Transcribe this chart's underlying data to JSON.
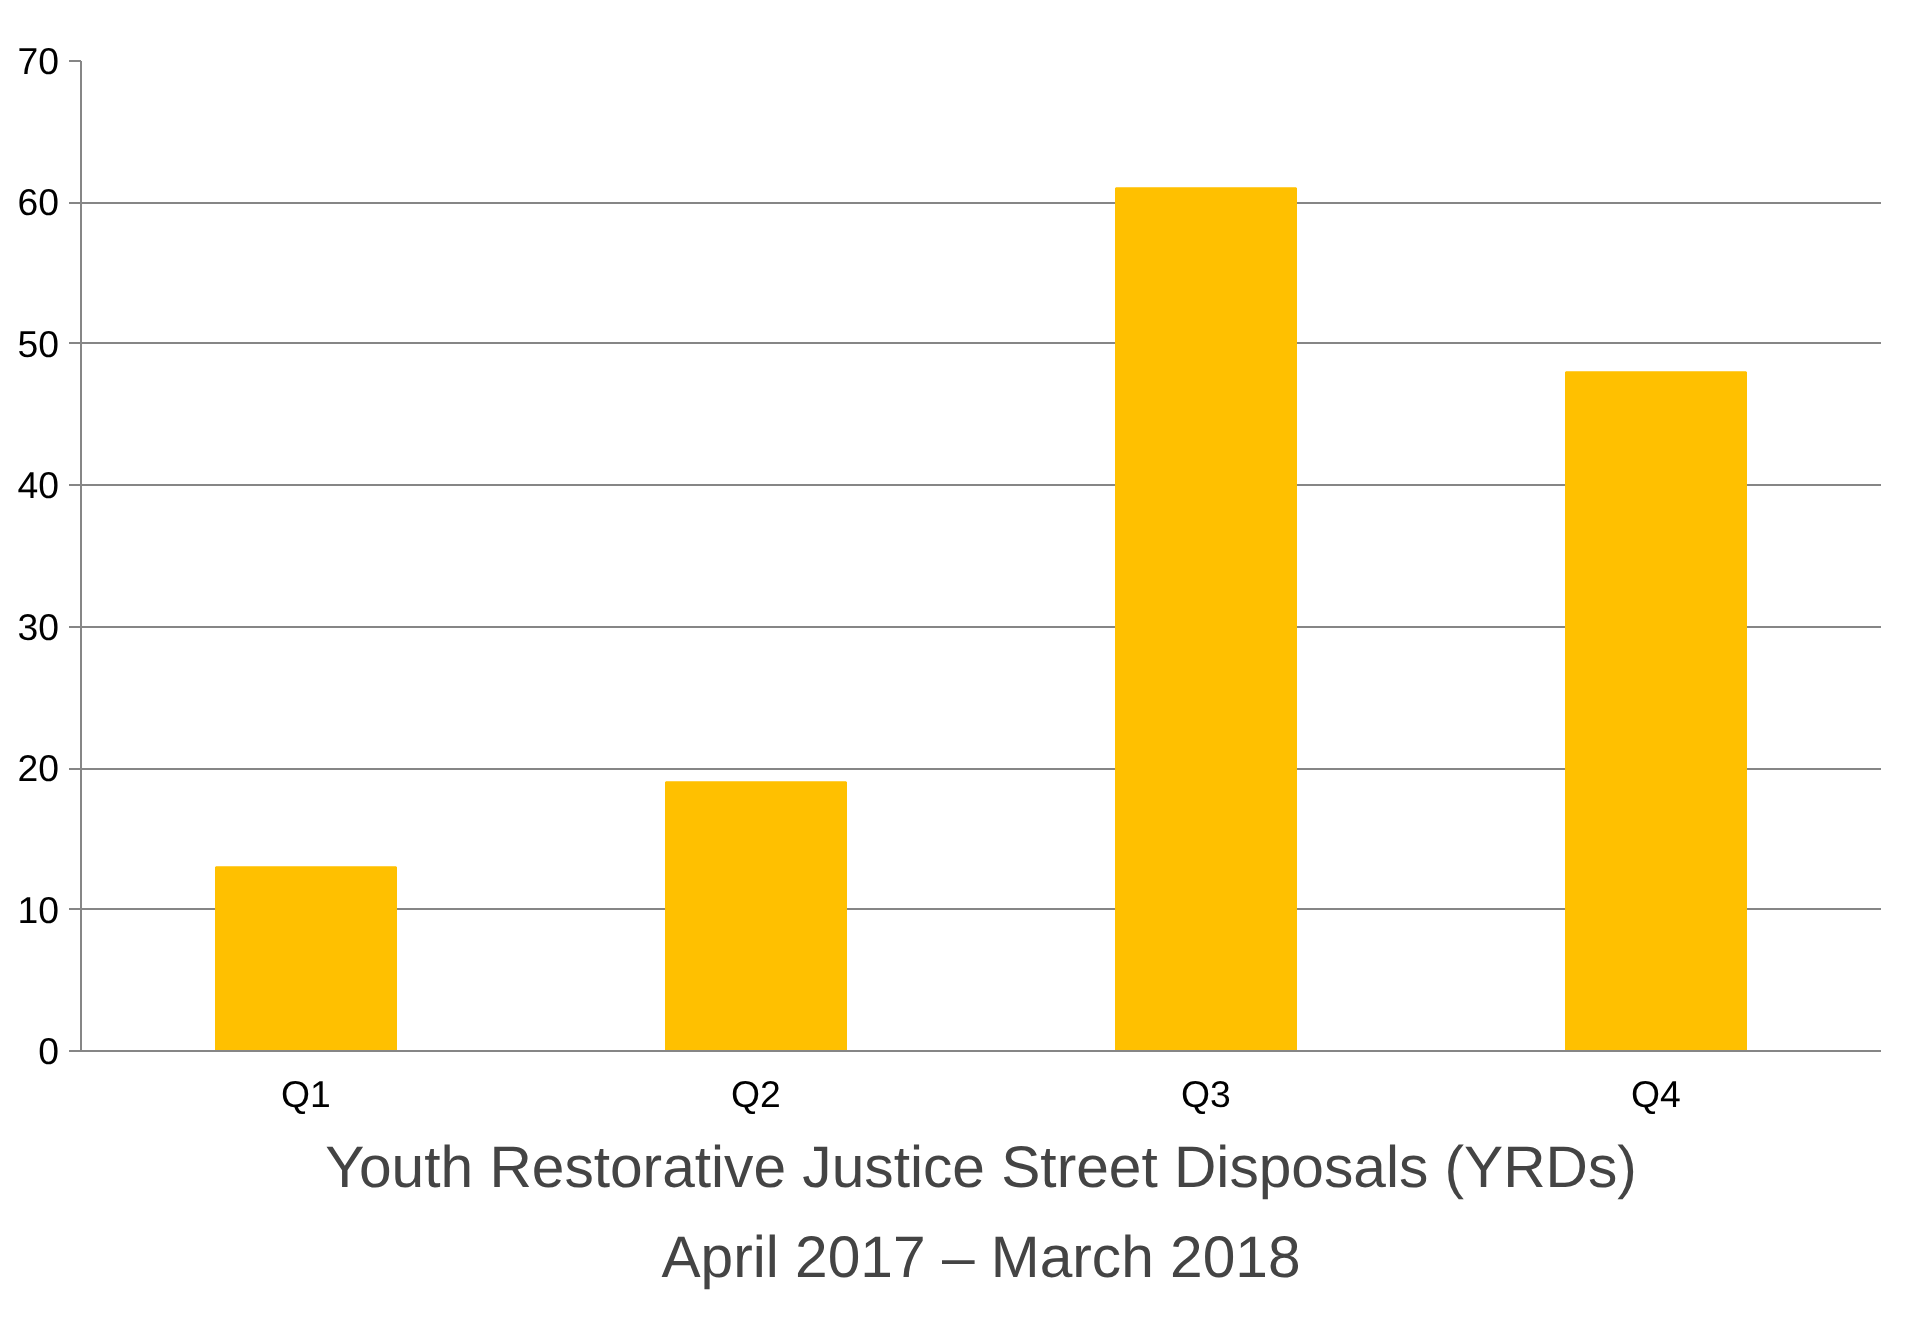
{
  "chart_data": {
    "type": "bar",
    "title": "Youth Restorative Justice Street Disposals (YRDs)",
    "subtitle": "April 2017 – March 2018",
    "categories": [
      "Q1",
      "Q2",
      "Q3",
      "Q4"
    ],
    "values": [
      13,
      19,
      61,
      48
    ],
    "color": "#ffc000",
    "ylim": [
      0,
      70
    ],
    "yticks": [
      0,
      10,
      20,
      30,
      40,
      50,
      60,
      70
    ],
    "grid": "y"
  }
}
